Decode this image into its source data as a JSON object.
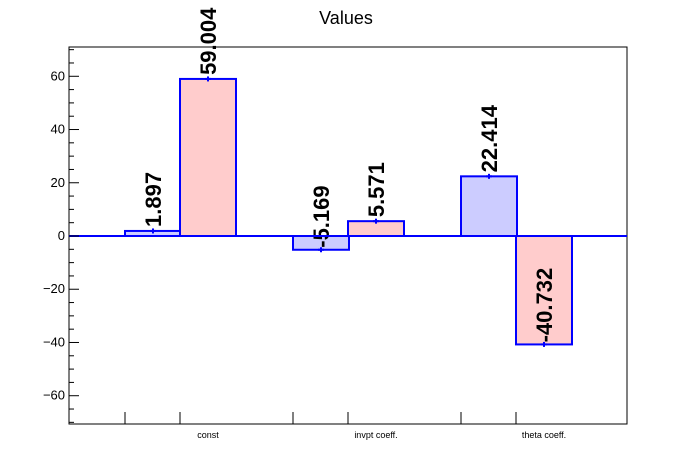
{
  "chart_data": {
    "type": "bar",
    "title": "Values",
    "xlabel": "",
    "ylabel": "",
    "categories": [
      "const",
      "invpt coeff.",
      "theta coeff."
    ],
    "series": [
      {
        "values": [
          1.897,
          -5.169,
          22.414
        ],
        "value_labels": [
          "1.897",
          "-5.169",
          "22.414"
        ],
        "color": "#ccccff"
      },
      {
        "values": [
          59.004,
          5.571,
          -40.732
        ],
        "value_labels": [
          "59.004",
          "5.571",
          "-40.732"
        ],
        "color": "#ffcccc"
      }
    ],
    "ylim": [
      -71,
      71
    ],
    "yticks": [
      -60,
      -40,
      -20,
      0,
      20,
      40,
      60
    ],
    "ytick_labels": [
      "−60",
      "−40",
      "−20",
      "0",
      "20",
      "40",
      "60"
    ],
    "grid": false,
    "legend": "none",
    "outline_color": "#0000ff",
    "zero_line_color": "#0000ff"
  }
}
